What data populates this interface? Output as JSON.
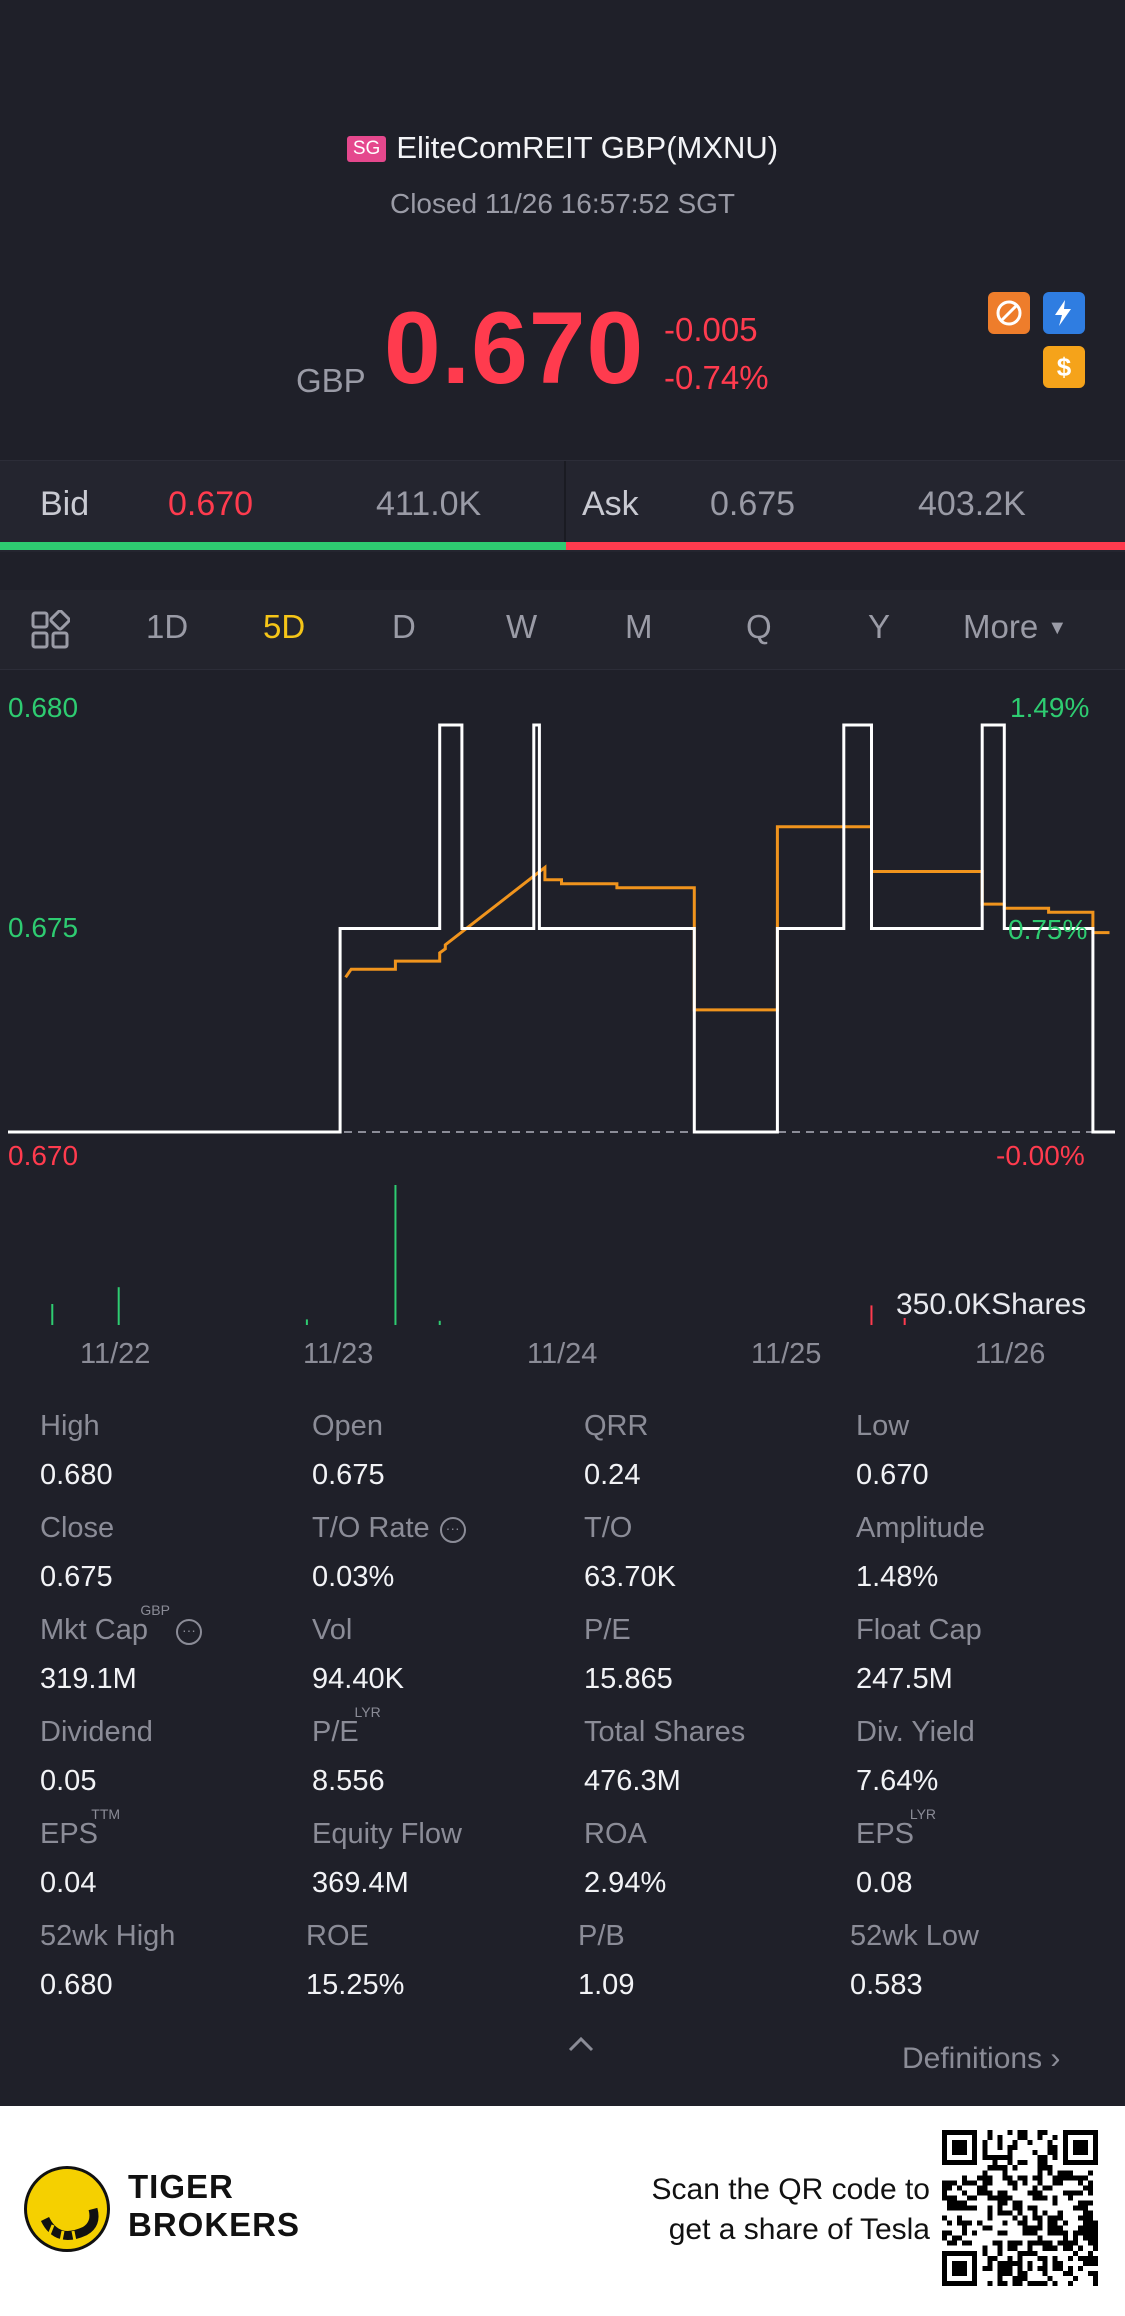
{
  "header": {
    "exchange_badge": "SG",
    "title": "EliteComREIT GBP(MXNU)",
    "status": "Closed 11/26 16:57:52 SGT",
    "currency": "GBP",
    "price": "0.670",
    "change": "-0.005",
    "change_pct": "-0.74%",
    "price_color": "#ff3b4e"
  },
  "bidask": {
    "bid_label": "Bid",
    "bid_price": "0.670",
    "bid_size": "411.0K",
    "ask_label": "Ask",
    "ask_price": "0.675",
    "ask_size": "403.2K"
  },
  "tabs": {
    "items": [
      "1D",
      "5D",
      "D",
      "W",
      "M",
      "Q",
      "Y"
    ],
    "active": "5D",
    "more_label": "More"
  },
  "chart_data": {
    "type": "line",
    "title": "",
    "xlabel": "",
    "ylabel": "",
    "ylim": [
      0.67,
      0.68
    ],
    "y_left_ticks": [
      "0.680",
      "0.675",
      "0.670"
    ],
    "y_right_ticks": [
      "1.49%",
      "0.75%",
      "-0.00%"
    ],
    "x_ticks": [
      "11/22",
      "11/23",
      "11/24",
      "11/25",
      "11/26"
    ],
    "baseline": 0.67,
    "series": [
      {
        "color": "#ffffff",
        "x": [
          0,
          0.3,
          0.3,
          0.39,
          0.39,
          0.41,
          0.41,
          0.475,
          0.475,
          0.48,
          0.48,
          0.62,
          0.62,
          0.695,
          0.695,
          0.755,
          0.755,
          0.765,
          0.765,
          0.78,
          0.78,
          0.795,
          0.795,
          0.88,
          0.88,
          0.9,
          0.9,
          0.98,
          0.98,
          1.0
        ],
        "values": [
          0.67,
          0.67,
          0.675,
          0.675,
          0.68,
          0.68,
          0.675,
          0.675,
          0.68,
          0.68,
          0.675,
          0.675,
          0.67,
          0.67,
          0.675,
          0.675,
          0.68,
          0.68,
          0.68,
          0.68,
          0.675,
          0.675,
          0.675,
          0.675,
          0.68,
          0.68,
          0.675,
          0.675,
          0.67,
          0.67
        ]
      },
      {
        "color": "#f0941d",
        "x": [
          0.305,
          0.31,
          0.35,
          0.35,
          0.39,
          0.39,
          0.395,
          0.395,
          0.485,
          0.485,
          0.5,
          0.5,
          0.55,
          0.55,
          0.6,
          0.62,
          0.62,
          0.695,
          0.695,
          0.78,
          0.78,
          0.795,
          0.88,
          0.88,
          0.9,
          0.9,
          0.94,
          0.94,
          0.98,
          0.98,
          0.995
        ],
        "values": [
          0.6738,
          0.674,
          0.674,
          0.6742,
          0.6742,
          0.6744,
          0.6745,
          0.6746,
          0.6765,
          0.6762,
          0.6762,
          0.6761,
          0.6761,
          0.676,
          0.676,
          0.676,
          0.673,
          0.673,
          0.6775,
          0.6775,
          0.6764,
          0.6764,
          0.6764,
          0.6756,
          0.6756,
          0.6755,
          0.6755,
          0.6754,
          0.6754,
          0.6749,
          0.6749
        ]
      }
    ],
    "volume": {
      "label": "350.0KShares",
      "bars": [
        {
          "x": 0.04,
          "value": 0.15,
          "color": "#2ecc71"
        },
        {
          "x": 0.1,
          "value": 0.27,
          "color": "#2ecc71"
        },
        {
          "x": 0.27,
          "value": 0.04,
          "color": "#2ecc71"
        },
        {
          "x": 0.35,
          "value": 1.0,
          "color": "#2ecc71"
        },
        {
          "x": 0.39,
          "value": 0.03,
          "color": "#2ecc71"
        },
        {
          "x": 0.78,
          "value": 0.14,
          "color": "#ff3b4e"
        },
        {
          "x": 0.81,
          "value": 0.05,
          "color": "#ff3b4e"
        }
      ]
    }
  },
  "stats": {
    "items": [
      {
        "label": "High",
        "value": "0.680"
      },
      {
        "label": "Open",
        "value": "0.675"
      },
      {
        "label": "QRR",
        "value": "0.24"
      },
      {
        "label": "Low",
        "value": "0.670"
      },
      {
        "label": "Close",
        "value": "0.675"
      },
      {
        "label": "T/O Rate",
        "value": "0.03%"
      },
      {
        "label": "T/O",
        "value": "63.70K"
      },
      {
        "label": "Amplitude",
        "value": "1.48%"
      },
      {
        "label": "Mkt Cap",
        "value": "319.1M",
        "sup": "GBP"
      },
      {
        "label": "Vol",
        "value": "94.40K"
      },
      {
        "label": "P/E",
        "value": "15.865"
      },
      {
        "label": "Float Cap",
        "value": "247.5M"
      },
      {
        "label": "Dividend",
        "value": "0.05"
      },
      {
        "label": "P/E",
        "value": "8.556",
        "sup": "LYR"
      },
      {
        "label": "Total Shares",
        "value": "476.3M"
      },
      {
        "label": "Div. Yield",
        "value": "7.64%"
      },
      {
        "label": "EPS",
        "value": "0.04",
        "sup": "TTM"
      },
      {
        "label": "Equity Flow",
        "value": "369.4M"
      },
      {
        "label": "ROA",
        "value": "2.94%"
      },
      {
        "label": "EPS",
        "value": "0.08",
        "sup": "LYR"
      },
      {
        "label": "52wk High",
        "value": "0.680"
      },
      {
        "label": "ROE",
        "value": "15.25%"
      },
      {
        "label": "P/B",
        "value": "1.09"
      },
      {
        "label": "52wk Low",
        "value": "0.583"
      }
    ],
    "definitions_label": "Definitions"
  },
  "footer": {
    "brand_line1": "TIGER",
    "brand_line2": "BROKERS",
    "promo_line1": "Scan the QR code to",
    "promo_line2": "get a share of Tesla"
  }
}
